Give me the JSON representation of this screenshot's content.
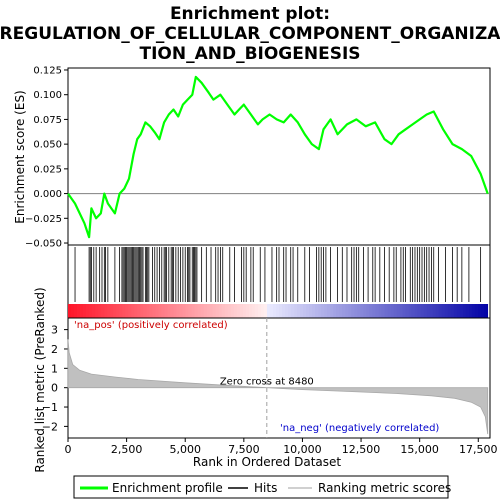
{
  "chart_data": {
    "type": "line",
    "title": "Enrichment plot: REGULATION_OF_CELLULAR_COMPONENT_ORGANIZATION_AND_BIOGENESIS",
    "title_lines": [
      "Enrichment plot:",
      "REGULATION_OF_CELLULAR_COMPONENT_ORGANIZA",
      "TION_AND_BIOGENESIS"
    ],
    "top_panel": {
      "ylabel": "Enrichment score (ES)",
      "ylim": [
        -0.052,
        0.127
      ],
      "yticks": [
        -0.05,
        -0.025,
        0.0,
        0.025,
        0.05,
        0.075,
        0.1,
        0.125
      ],
      "ytick_labels": [
        "−0.050",
        "−0.025",
        "0.000",
        "0.025",
        "0.050",
        "0.075",
        "0.100",
        "0.125"
      ],
      "series": [
        {
          "name": "Enrichment profile",
          "color": "#00ff00",
          "x": [
            0,
            300,
            700,
            900,
            1000,
            1200,
            1400,
            1550,
            1700,
            2000,
            2200,
            2400,
            2600,
            2800,
            2950,
            3100,
            3300,
            3500,
            3700,
            3900,
            4100,
            4300,
            4500,
            4700,
            4900,
            5100,
            5300,
            5450,
            5700,
            6000,
            6200,
            6500,
            6800,
            7100,
            7300,
            7500,
            7800,
            8100,
            8300,
            8600,
            8900,
            9200,
            9500,
            9800,
            10100,
            10400,
            10700,
            10900,
            11200,
            11500,
            11900,
            12300,
            12700,
            13100,
            13500,
            13800,
            14100,
            14400,
            14700,
            15000,
            15300,
            15600,
            16000,
            16400,
            16800,
            17200,
            17600,
            17900
          ],
          "y": [
            0.0,
            -0.01,
            -0.03,
            -0.044,
            -0.015,
            -0.025,
            -0.02,
            0.0,
            -0.01,
            -0.02,
            0.0,
            0.005,
            0.015,
            0.04,
            0.055,
            0.06,
            0.072,
            0.068,
            0.062,
            0.055,
            0.072,
            0.08,
            0.085,
            0.078,
            0.09,
            0.095,
            0.1,
            0.118,
            0.112,
            0.102,
            0.095,
            0.1,
            0.09,
            0.08,
            0.085,
            0.09,
            0.08,
            0.07,
            0.075,
            0.08,
            0.075,
            0.072,
            0.08,
            0.072,
            0.06,
            0.05,
            0.045,
            0.065,
            0.075,
            0.06,
            0.07,
            0.075,
            0.068,
            0.072,
            0.055,
            0.05,
            0.06,
            0.065,
            0.07,
            0.075,
            0.08,
            0.083,
            0.065,
            0.05,
            0.045,
            0.038,
            0.02,
            0.0
          ]
        }
      ]
    },
    "hits_panel": {
      "series_name": "Hits",
      "hit_positions": [
        300,
        900,
        950,
        1000,
        1100,
        1200,
        1350,
        1450,
        1550,
        1600,
        1700,
        2000,
        2200,
        2300,
        2350,
        2400,
        2450,
        2500,
        2550,
        2600,
        2650,
        2700,
        2750,
        2800,
        2850,
        2900,
        2950,
        3000,
        3050,
        3100,
        3150,
        3200,
        3300,
        3350,
        3400,
        3450,
        3600,
        3700,
        3800,
        3900,
        4000,
        4100,
        4150,
        4200,
        4300,
        4400,
        4450,
        4500,
        4600,
        4700,
        4800,
        4900,
        5000,
        5100,
        5150,
        5200,
        5300,
        5350,
        5400,
        5450,
        5500,
        5700,
        5900,
        6100,
        6300,
        6400,
        6500,
        6600,
        6900,
        7100,
        7400,
        7500,
        7600,
        7800,
        7900,
        8200,
        8400,
        8700,
        8900,
        9000,
        9200,
        9300,
        9500,
        9600,
        9800,
        10100,
        10300,
        10600,
        10700,
        10800,
        10900,
        11000,
        11200,
        11500,
        11700,
        11900,
        12100,
        12200,
        12300,
        12400,
        12600,
        12800,
        13000,
        13100,
        13300,
        13500,
        13700,
        13900,
        14000,
        14200,
        14300,
        14400,
        14600,
        14700,
        14800,
        14900,
        15000,
        15100,
        15200,
        15300,
        15400,
        15500,
        15600,
        15800,
        16100,
        16400,
        16600,
        16800,
        17100,
        17600
      ]
    },
    "rank_panel": {
      "ylabel": "Ranked list metric (PreRanked)",
      "xlabel": "Rank in Ordered Dataset",
      "ylim": [
        -2.6,
        3.6
      ],
      "yticks": [
        -2,
        -1,
        0,
        1,
        2,
        3
      ],
      "ytick_labels": [
        "−2",
        "−1",
        "0",
        "1",
        "2",
        "3"
      ],
      "xlim": [
        0,
        18000
      ],
      "xticks": [
        0,
        2500,
        5000,
        7500,
        10000,
        12500,
        15000,
        17500
      ],
      "xtick_labels": [
        "0",
        "2,500",
        "5,000",
        "7,500",
        "10,000",
        "12,500",
        "15,000",
        "17,500"
      ],
      "metric_points": [
        [
          0,
          2.5
        ],
        [
          50,
          1.8
        ],
        [
          200,
          1.2
        ],
        [
          500,
          0.9
        ],
        [
          1000,
          0.7
        ],
        [
          2000,
          0.55
        ],
        [
          3000,
          0.42
        ],
        [
          5000,
          0.25
        ],
        [
          7000,
          0.1
        ],
        [
          8480,
          0.0
        ],
        [
          10000,
          -0.1
        ],
        [
          12000,
          -0.2
        ],
        [
          14000,
          -0.3
        ],
        [
          15500,
          -0.42
        ],
        [
          16500,
          -0.55
        ],
        [
          17200,
          -0.75
        ],
        [
          17600,
          -1.0
        ],
        [
          17800,
          -1.5
        ],
        [
          17900,
          -2.4
        ]
      ],
      "zero_cross_label": "Zero cross at 8480",
      "zero_cross": 8480,
      "pos_label": "'na_pos' (positively correlated)",
      "neg_label": "'na_neg' (negatively correlated)"
    },
    "legend": {
      "placement": "bottom",
      "entries": [
        {
          "label": "Enrichment profile",
          "color": "#00ff00"
        },
        {
          "label": "Hits",
          "color": "#000000"
        },
        {
          "label": "Ranking metric scores",
          "color": "#c0c0c0"
        }
      ]
    },
    "colors": {
      "profile": "#00ff00",
      "hits": "#000000",
      "metric_fill": "#c0c0c0",
      "pos_label": "#cc0000",
      "neg_label": "#0000cc"
    }
  }
}
